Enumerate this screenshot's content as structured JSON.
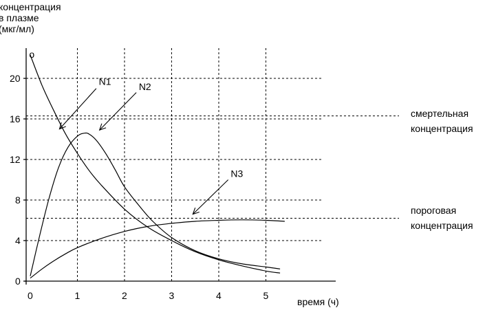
{
  "chart_data": {
    "type": "line",
    "ylabel_lines": [
      "концентрация",
      "в плазме",
      "(мкг/мл)"
    ],
    "xlabel": "время (ч)",
    "xlim": [
      0,
      5.5
    ],
    "ylim": [
      0,
      23
    ],
    "x_ticks": [
      0,
      1,
      2,
      3,
      4,
      5
    ],
    "y_ticks": [
      0,
      4,
      8,
      12,
      16,
      20
    ],
    "grid": true,
    "series": [
      {
        "name": "N1",
        "label_x": 1.6,
        "label_y": 19.7,
        "arrow_from": [
          1.4,
          19.0
        ],
        "arrow_to": [
          0.62,
          15.0
        ],
        "x": [
          0,
          0.25,
          0.5,
          0.75,
          1.0,
          1.25,
          1.5,
          2.0,
          2.5,
          3.0,
          3.5,
          4.0,
          4.5,
          5.0,
          5.3
        ],
        "y": [
          22.3,
          19.3,
          16.8,
          14.5,
          12.6,
          10.9,
          9.5,
          7.1,
          5.3,
          4.0,
          2.9,
          2.1,
          1.5,
          1.0,
          0.8
        ]
      },
      {
        "name": "N2",
        "label_x": 2.45,
        "label_y": 19.2,
        "arrow_from": [
          2.25,
          18.6
        ],
        "arrow_to": [
          1.47,
          14.9
        ],
        "x": [
          0.0,
          0.2,
          0.4,
          0.6,
          0.8,
          1.0,
          1.15,
          1.25,
          1.4,
          1.6,
          1.8,
          2.0,
          2.3,
          2.6,
          3.0,
          3.5,
          4.0,
          4.5,
          5.0,
          5.3
        ],
        "y": [
          0.5,
          4.5,
          8.2,
          11.2,
          13.2,
          14.3,
          14.6,
          14.5,
          13.9,
          12.6,
          11.0,
          9.3,
          7.5,
          5.9,
          4.3,
          3.0,
          2.2,
          1.7,
          1.4,
          1.2
        ]
      },
      {
        "name": "N3",
        "label_x": 4.4,
        "label_y": 10.6,
        "arrow_from": [
          4.2,
          10.0
        ],
        "arrow_to": [
          3.45,
          6.6
        ],
        "x": [
          0,
          0.25,
          0.5,
          0.75,
          1.0,
          1.5,
          2.0,
          2.5,
          3.0,
          3.5,
          4.0,
          4.5,
          5.0,
          5.4
        ],
        "y": [
          0.3,
          1.2,
          2.0,
          2.7,
          3.3,
          4.2,
          4.9,
          5.4,
          5.7,
          5.9,
          6.0,
          6.05,
          6.0,
          5.9
        ]
      }
    ],
    "reference_lines": [
      {
        "y": 16.3,
        "label_lines": [
          "смертельная",
          "концентрация"
        ]
      },
      {
        "y": 6.2,
        "label_lines": [
          "пороговая",
          "концентрация"
        ]
      }
    ],
    "annotations": [
      {
        "text": "o",
        "x": 0.02,
        "y": 22.3
      }
    ]
  }
}
